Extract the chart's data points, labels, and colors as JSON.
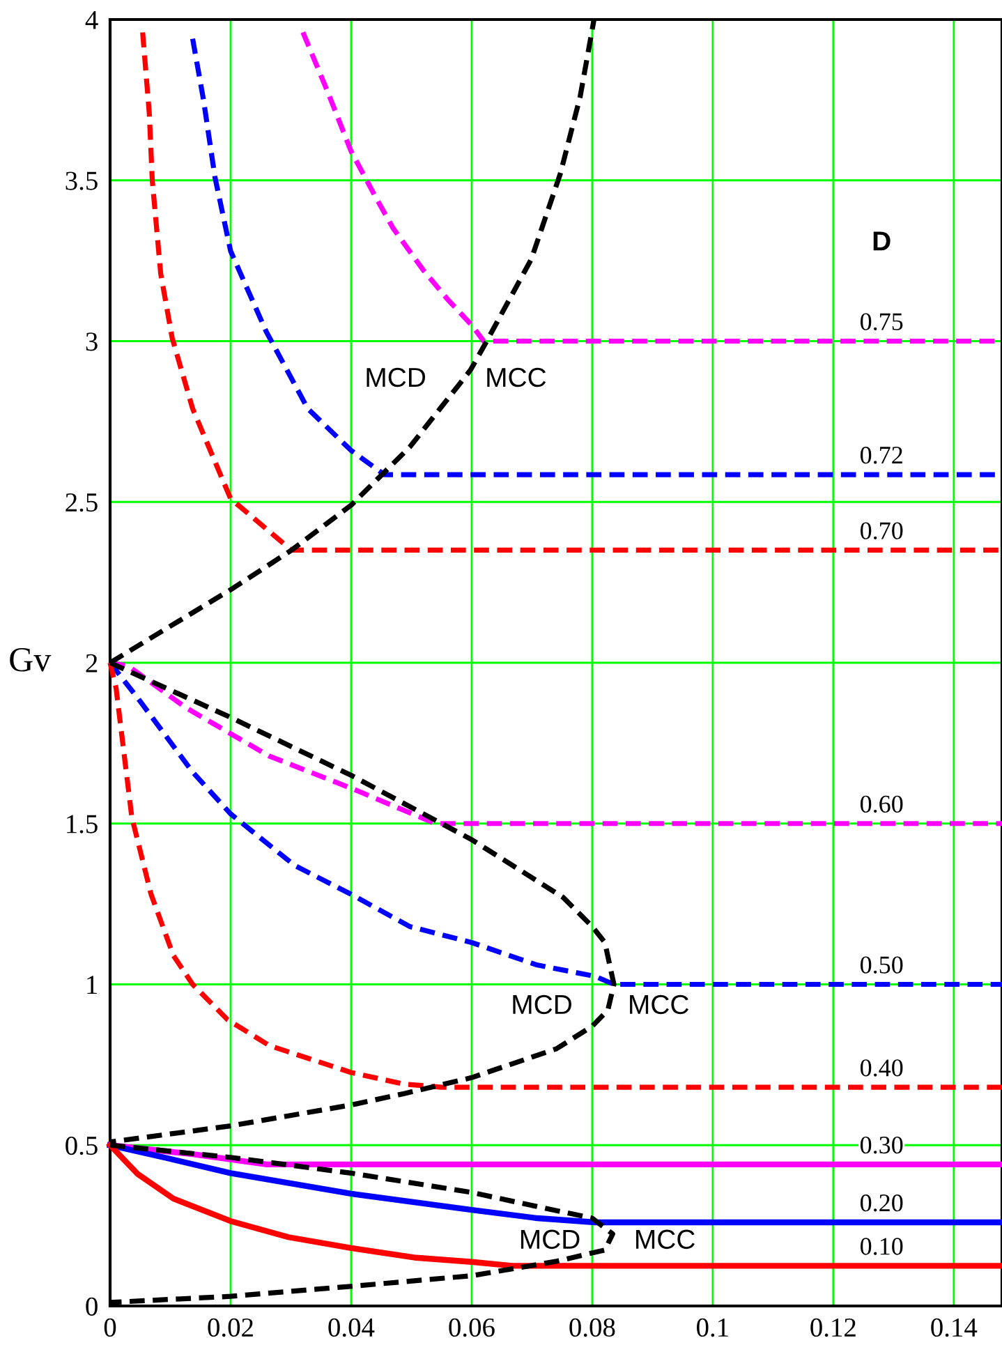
{
  "chart_data": {
    "type": "line",
    "ylabel": "Gv",
    "legend_title": "D",
    "xlim": [
      0,
      0.148
    ],
    "ylim": [
      0,
      4
    ],
    "xticks": [
      0,
      0.02,
      0.04,
      0.06,
      0.08,
      0.1,
      0.12,
      0.14
    ],
    "yticks": [
      0,
      0.5,
      1,
      1.5,
      2,
      2.5,
      3,
      3.5,
      4
    ],
    "grid": true,
    "series": [
      {
        "name": "0.75",
        "color": "#ff00ff",
        "line_style": "dashed",
        "x": [
          0.032,
          0.036,
          0.04,
          0.044,
          0.047,
          0.052,
          0.056,
          0.06,
          0.062,
          0.148
        ],
        "values": [
          3.96,
          3.78,
          3.59,
          3.45,
          3.35,
          3.22,
          3.13,
          3.05,
          3.0,
          3.0
        ]
      },
      {
        "name": "0.72",
        "color": "#0000ff",
        "line_style": "dashed",
        "x": [
          0.0137,
          0.0155,
          0.0174,
          0.02,
          0.0259,
          0.0328,
          0.04,
          0.0455,
          0.148
        ],
        "values": [
          3.94,
          3.75,
          3.51,
          3.28,
          3.03,
          2.79,
          2.66,
          2.585,
          2.585
        ]
      },
      {
        "name": "0.70",
        "color": "#ff0000",
        "line_style": "dashed",
        "x": [
          0.0054,
          0.0065,
          0.007,
          0.0084,
          0.0103,
          0.0137,
          0.02,
          0.0301,
          0.148
        ],
        "values": [
          3.96,
          3.71,
          3.5,
          3.21,
          3.01,
          2.79,
          2.51,
          2.35,
          2.35
        ]
      },
      {
        "name": "0.60",
        "color": "#ff00ff",
        "line_style": "dashed",
        "x": [
          0,
          0.003,
          0.0126,
          0.0264,
          0.04,
          0.054,
          0.148
        ],
        "values": [
          2.0,
          1.99,
          1.86,
          1.71,
          1.61,
          1.5,
          1.5
        ]
      },
      {
        "name": "0.50",
        "color": "#0000ff",
        "line_style": "dashed",
        "x": [
          0,
          0.0046,
          0.0137,
          0.02,
          0.0306,
          0.04,
          0.0497,
          0.06,
          0.0709,
          0.0805,
          0.0836,
          0.148
        ],
        "values": [
          2.0,
          1.89,
          1.66,
          1.53,
          1.37,
          1.28,
          1.18,
          1.13,
          1.06,
          1.025,
          1.0,
          1.0
        ]
      },
      {
        "name": "0.40",
        "color": "#ff0000",
        "line_style": "dashed",
        "x": [
          0,
          0.001,
          0.0036,
          0.0068,
          0.0105,
          0.0137,
          0.0195,
          0.0264,
          0.04,
          0.0487,
          0.055,
          0.148
        ],
        "values": [
          2.0,
          1.92,
          1.52,
          1.28,
          1.09,
          1.0,
          0.89,
          0.81,
          0.726,
          0.69,
          0.68,
          0.68
        ]
      },
      {
        "name": "0.30",
        "color": "#ff00ff",
        "line_style": "solid",
        "x": [
          0,
          0.0137,
          0.026,
          0.148
        ],
        "values": [
          0.5,
          0.472,
          0.44,
          0.44
        ]
      },
      {
        "name": "0.20",
        "color": "#0000ff",
        "line_style": "solid",
        "x": [
          0,
          0.0094,
          0.02,
          0.04,
          0.06,
          0.0709,
          0.0805,
          0.148
        ],
        "values": [
          0.5,
          0.46,
          0.413,
          0.349,
          0.299,
          0.273,
          0.26,
          0.26
        ]
      },
      {
        "name": "0.10",
        "color": "#ff0000",
        "line_style": "solid",
        "x": [
          0,
          0.0046,
          0.0105,
          0.02,
          0.0296,
          0.04,
          0.0508,
          0.06,
          0.0667,
          0.148
        ],
        "values": [
          0.5,
          0.41,
          0.334,
          0.264,
          0.214,
          0.18,
          0.15,
          0.137,
          0.125,
          0.125
        ]
      },
      {
        "color": "#000000",
        "line_style": "dashed",
        "x": [
          0,
          0.0094,
          0.02,
          0.0301,
          0.04,
          0.0497,
          0.0598,
          0.0625,
          0.0699,
          0.0747,
          0.078,
          0.0803
        ],
        "values": [
          2.0,
          2.107,
          2.227,
          2.35,
          2.49,
          2.67,
          2.91,
          3.0,
          3.255,
          3.52,
          3.76,
          4.0
        ]
      },
      {
        "color": "#000000",
        "line_style": "dashed",
        "x": [
          0,
          0.02,
          0.04,
          0.054,
          0.06,
          0.0752,
          0.08,
          0.0821,
          0.0836,
          0.0826,
          0.08,
          0.0741,
          0.06,
          0.0487,
          0.04,
          0.02,
          0
        ],
        "values": [
          2.0,
          1.83,
          1.65,
          1.51,
          1.45,
          1.27,
          1.18,
          1.13,
          1.0,
          0.92,
          0.87,
          0.8,
          0.71,
          0.66,
          0.625,
          0.56,
          0.51
        ]
      },
      {
        "color": "#000000",
        "line_style": "dashed",
        "x": [
          0,
          0.02,
          0.04,
          0.06,
          0.0699,
          0.08,
          0.0834,
          0.0821,
          0.0741,
          0.06,
          0.04,
          0.02,
          0
        ],
        "values": [
          0.5,
          0.462,
          0.413,
          0.353,
          0.313,
          0.273,
          0.224,
          0.174,
          0.139,
          0.094,
          0.061,
          0.03,
          0.011
        ]
      }
    ],
    "annotations": [
      "MCD",
      "MCC",
      "MCD",
      "MCC",
      "MCD",
      "MCC"
    ]
  }
}
